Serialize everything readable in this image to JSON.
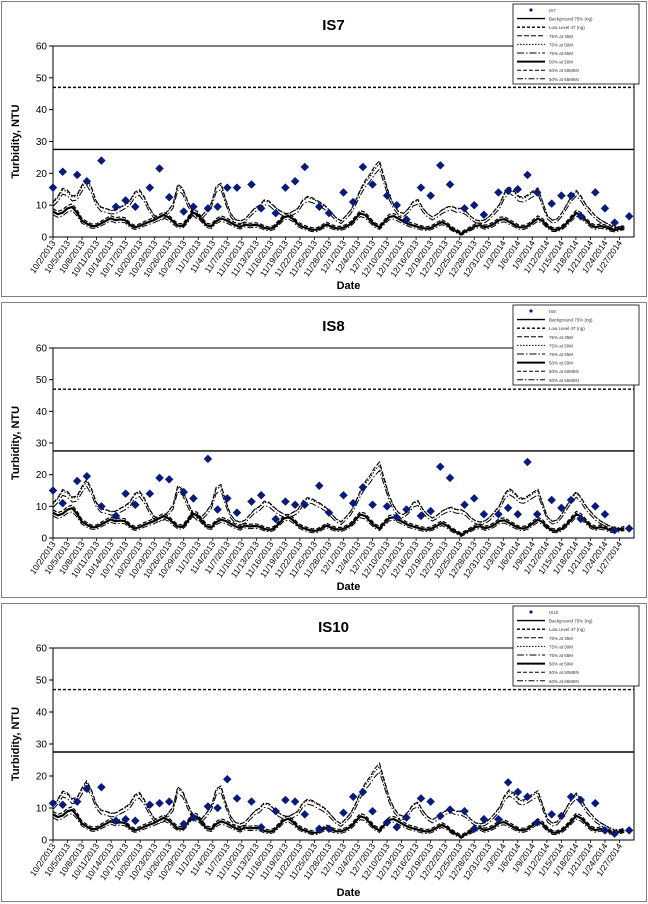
{
  "dates": [
    "10/2/2013",
    "10/5/2013",
    "10/8/2013",
    "10/11/2013",
    "10/14/2013",
    "10/17/2013",
    "10/20/2013",
    "10/23/2013",
    "10/26/2013",
    "10/29/2013",
    "11/1/2013",
    "11/4/2013",
    "11/7/2013",
    "11/10/2013",
    "11/13/2013",
    "11/16/2013",
    "11/19/2013",
    "11/22/2013",
    "11/25/2013",
    "11/28/2013",
    "12/1/2013",
    "12/4/2013",
    "12/7/2013",
    "12/10/2013",
    "12/13/2013",
    "12/16/2013",
    "12/19/2013",
    "12/22/2013",
    "12/25/2013",
    "12/28/2013",
    "12/31/2013",
    "1/3/2014",
    "1/6/2014",
    "1/9/2014",
    "1/12/2014",
    "1/15/2014",
    "1/18/2014",
    "1/21/2014",
    "1/24/2014",
    "1/27/2014"
  ],
  "common": {
    "xlabel": "Date",
    "ylabel": "Turbidity, NTU",
    "ylim": [
      0,
      60
    ],
    "yticks": [
      0,
      10,
      20,
      30,
      40,
      50,
      60
    ],
    "hlines": [
      27.5,
      47
    ],
    "colors": {
      "marker": "#0a1a7a",
      "line": "#000000"
    }
  },
  "legend": {
    "IS7": [
      "IS7",
      "Background 75% (ng)",
      "Low Level 47 (ng)",
      "75% at 35M",
      "75% at 50M",
      "75% at 65M",
      "50% at 50M",
      "50% at 50M8N",
      "50% at 65M8N"
    ],
    "IS8": [
      "IS8",
      "Background 75% (ng)",
      "Low Level 47 (ng)",
      "75% at 35M",
      "75% at 50M",
      "75% at 65M",
      "50% at 50M",
      "50% at 50M8N",
      "50% at 65M8N"
    ],
    "IS10": [
      "IS10",
      "Background 75% (ng)",
      "Low Level 47 (ng)",
      "75% at 35M",
      "75% at 50M",
      "75% at 65M",
      "50% at 50M",
      "50% at 50M8N",
      "50% at 65M8N"
    ]
  },
  "chart_data": [
    {
      "type": "scatter",
      "title": "IS7",
      "xlabel": "Date",
      "ylabel": "Turbidity, NTU",
      "ylim": [
        0,
        60
      ],
      "x": [
        "10/2/2013",
        "10/4/2013",
        "10/7/2013",
        "10/9/2013",
        "10/12/2013",
        "10/15/2013",
        "10/17/2013",
        "10/19/2013",
        "10/22/2013",
        "10/24/2013",
        "10/26/2013",
        "10/29/2013",
        "10/31/2013",
        "11/3/2013",
        "11/5/2013",
        "11/7/2013",
        "11/9/2013",
        "11/12/2013",
        "11/14/2013",
        "11/17/2013",
        "11/19/2013",
        "11/21/2013",
        "11/23/2013",
        "11/26/2013",
        "11/28/2013",
        "12/1/2013",
        "12/3/2013",
        "12/5/2013",
        "12/7/2013",
        "12/10/2013",
        "12/12/2013",
        "12/14/2013",
        "12/17/2013",
        "12/19/2013",
        "12/21/2013",
        "12/23/2013",
        "12/26/2013",
        "12/28/2013",
        "12/30/2013",
        "1/2/2014",
        "1/4/2014",
        "1/6/2014",
        "1/8/2014",
        "1/10/2014",
        "1/13/2014",
        "1/15/2014",
        "1/17/2014",
        "1/19/2014",
        "1/22/2014",
        "1/24/2014",
        "1/26/2014",
        "1/29/2014"
      ],
      "values": [
        15.5,
        20.5,
        19.5,
        17.5,
        24,
        9.5,
        11.5,
        9.5,
        15.5,
        21.5,
        12.5,
        8,
        9.5,
        9,
        9.5,
        15.5,
        15.5,
        16.5,
        9,
        7.5,
        15.5,
        17.5,
        22,
        9.5,
        7.5,
        14,
        11,
        22,
        16.5,
        13,
        10,
        5.5,
        15.5,
        13,
        22.5,
        16.5,
        9,
        10,
        7,
        14,
        14.5,
        15,
        19.5,
        14,
        10.5,
        13,
        13,
        6.5,
        14,
        9,
        4.5,
        6.5
      ]
    },
    {
      "type": "scatter",
      "title": "IS8",
      "xlabel": "Date",
      "ylabel": "Turbidity, NTU",
      "ylim": [
        0,
        60
      ],
      "x": [
        "10/2/2013",
        "10/4/2013",
        "10/7/2013",
        "10/9/2013",
        "10/12/2013",
        "10/15/2013",
        "10/17/2013",
        "10/19/2013",
        "10/22/2013",
        "10/24/2013",
        "10/26/2013",
        "10/29/2013",
        "10/31/2013",
        "11/3/2013",
        "11/5/2013",
        "11/7/2013",
        "11/9/2013",
        "11/12/2013",
        "11/14/2013",
        "11/17/2013",
        "11/19/2013",
        "11/21/2013",
        "11/23/2013",
        "11/26/2013",
        "11/28/2013",
        "12/1/2013",
        "12/3/2013",
        "12/5/2013",
        "12/7/2013",
        "12/10/2013",
        "12/12/2013",
        "12/14/2013",
        "12/17/2013",
        "12/19/2013",
        "12/21/2013",
        "12/23/2013",
        "12/26/2013",
        "12/28/2013",
        "12/30/2013",
        "1/2/2014",
        "1/4/2014",
        "1/6/2014",
        "1/8/2014",
        "1/10/2014",
        "1/13/2014",
        "1/15/2014",
        "1/17/2014",
        "1/19/2014",
        "1/22/2014",
        "1/24/2014",
        "1/26/2014",
        "1/29/2014"
      ],
      "values": [
        15,
        11,
        18,
        19.5,
        10,
        7,
        14,
        10.5,
        14,
        19,
        18.5,
        14.5,
        12.5,
        25,
        9,
        12.5,
        8,
        11.5,
        13.5,
        6,
        11.5,
        10.5,
        10.5,
        16.5,
        8,
        13.5,
        11,
        16,
        10.5,
        10,
        6.5,
        9,
        7,
        8.5,
        22.5,
        19,
        10.5,
        12.5,
        7.5,
        7.5,
        9.5,
        7.5,
        24,
        7.5,
        12,
        9.5,
        12,
        6,
        10,
        7.5,
        2.5,
        3
      ]
    },
    {
      "type": "scatter",
      "title": "IS10",
      "xlabel": "Date",
      "ylabel": "Turbidity, NTU",
      "ylim": [
        0,
        60
      ],
      "x": [
        "10/2/2013",
        "10/4/2013",
        "10/7/2013",
        "10/9/2013",
        "10/12/2013",
        "10/15/2013",
        "10/17/2013",
        "10/19/2013",
        "10/22/2013",
        "10/24/2013",
        "10/26/2013",
        "10/29/2013",
        "10/31/2013",
        "11/3/2013",
        "11/5/2013",
        "11/7/2013",
        "11/9/2013",
        "11/12/2013",
        "11/14/2013",
        "11/17/2013",
        "11/19/2013",
        "11/21/2013",
        "11/23/2013",
        "11/26/2013",
        "11/28/2013",
        "12/1/2013",
        "12/3/2013",
        "12/5/2013",
        "12/7/2013",
        "12/10/2013",
        "12/12/2013",
        "12/14/2013",
        "12/17/2013",
        "12/19/2013",
        "12/21/2013",
        "12/23/2013",
        "12/26/2013",
        "12/28/2013",
        "12/30/2013",
        "1/2/2014",
        "1/4/2014",
        "1/6/2014",
        "1/8/2014",
        "1/10/2014",
        "1/13/2014",
        "1/15/2014",
        "1/17/2014",
        "1/19/2014",
        "1/22/2014",
        "1/24/2014",
        "1/26/2014",
        "1/29/2014"
      ],
      "values": [
        11.5,
        11,
        12,
        16,
        16.5,
        6,
        6.5,
        6,
        11,
        11.5,
        12,
        5,
        7,
        10.5,
        10,
        19,
        13,
        12,
        4,
        9,
        12.5,
        12,
        8,
        3.5,
        3.5,
        8.5,
        13.5,
        15,
        9,
        5.5,
        4,
        7,
        13,
        12,
        7.5,
        9.5,
        9,
        3.5,
        6.5,
        6.5,
        18,
        15,
        13.5,
        5.5,
        8,
        7.5,
        13.5,
        12.5,
        11.5,
        3,
        2,
        3
      ]
    }
  ]
}
